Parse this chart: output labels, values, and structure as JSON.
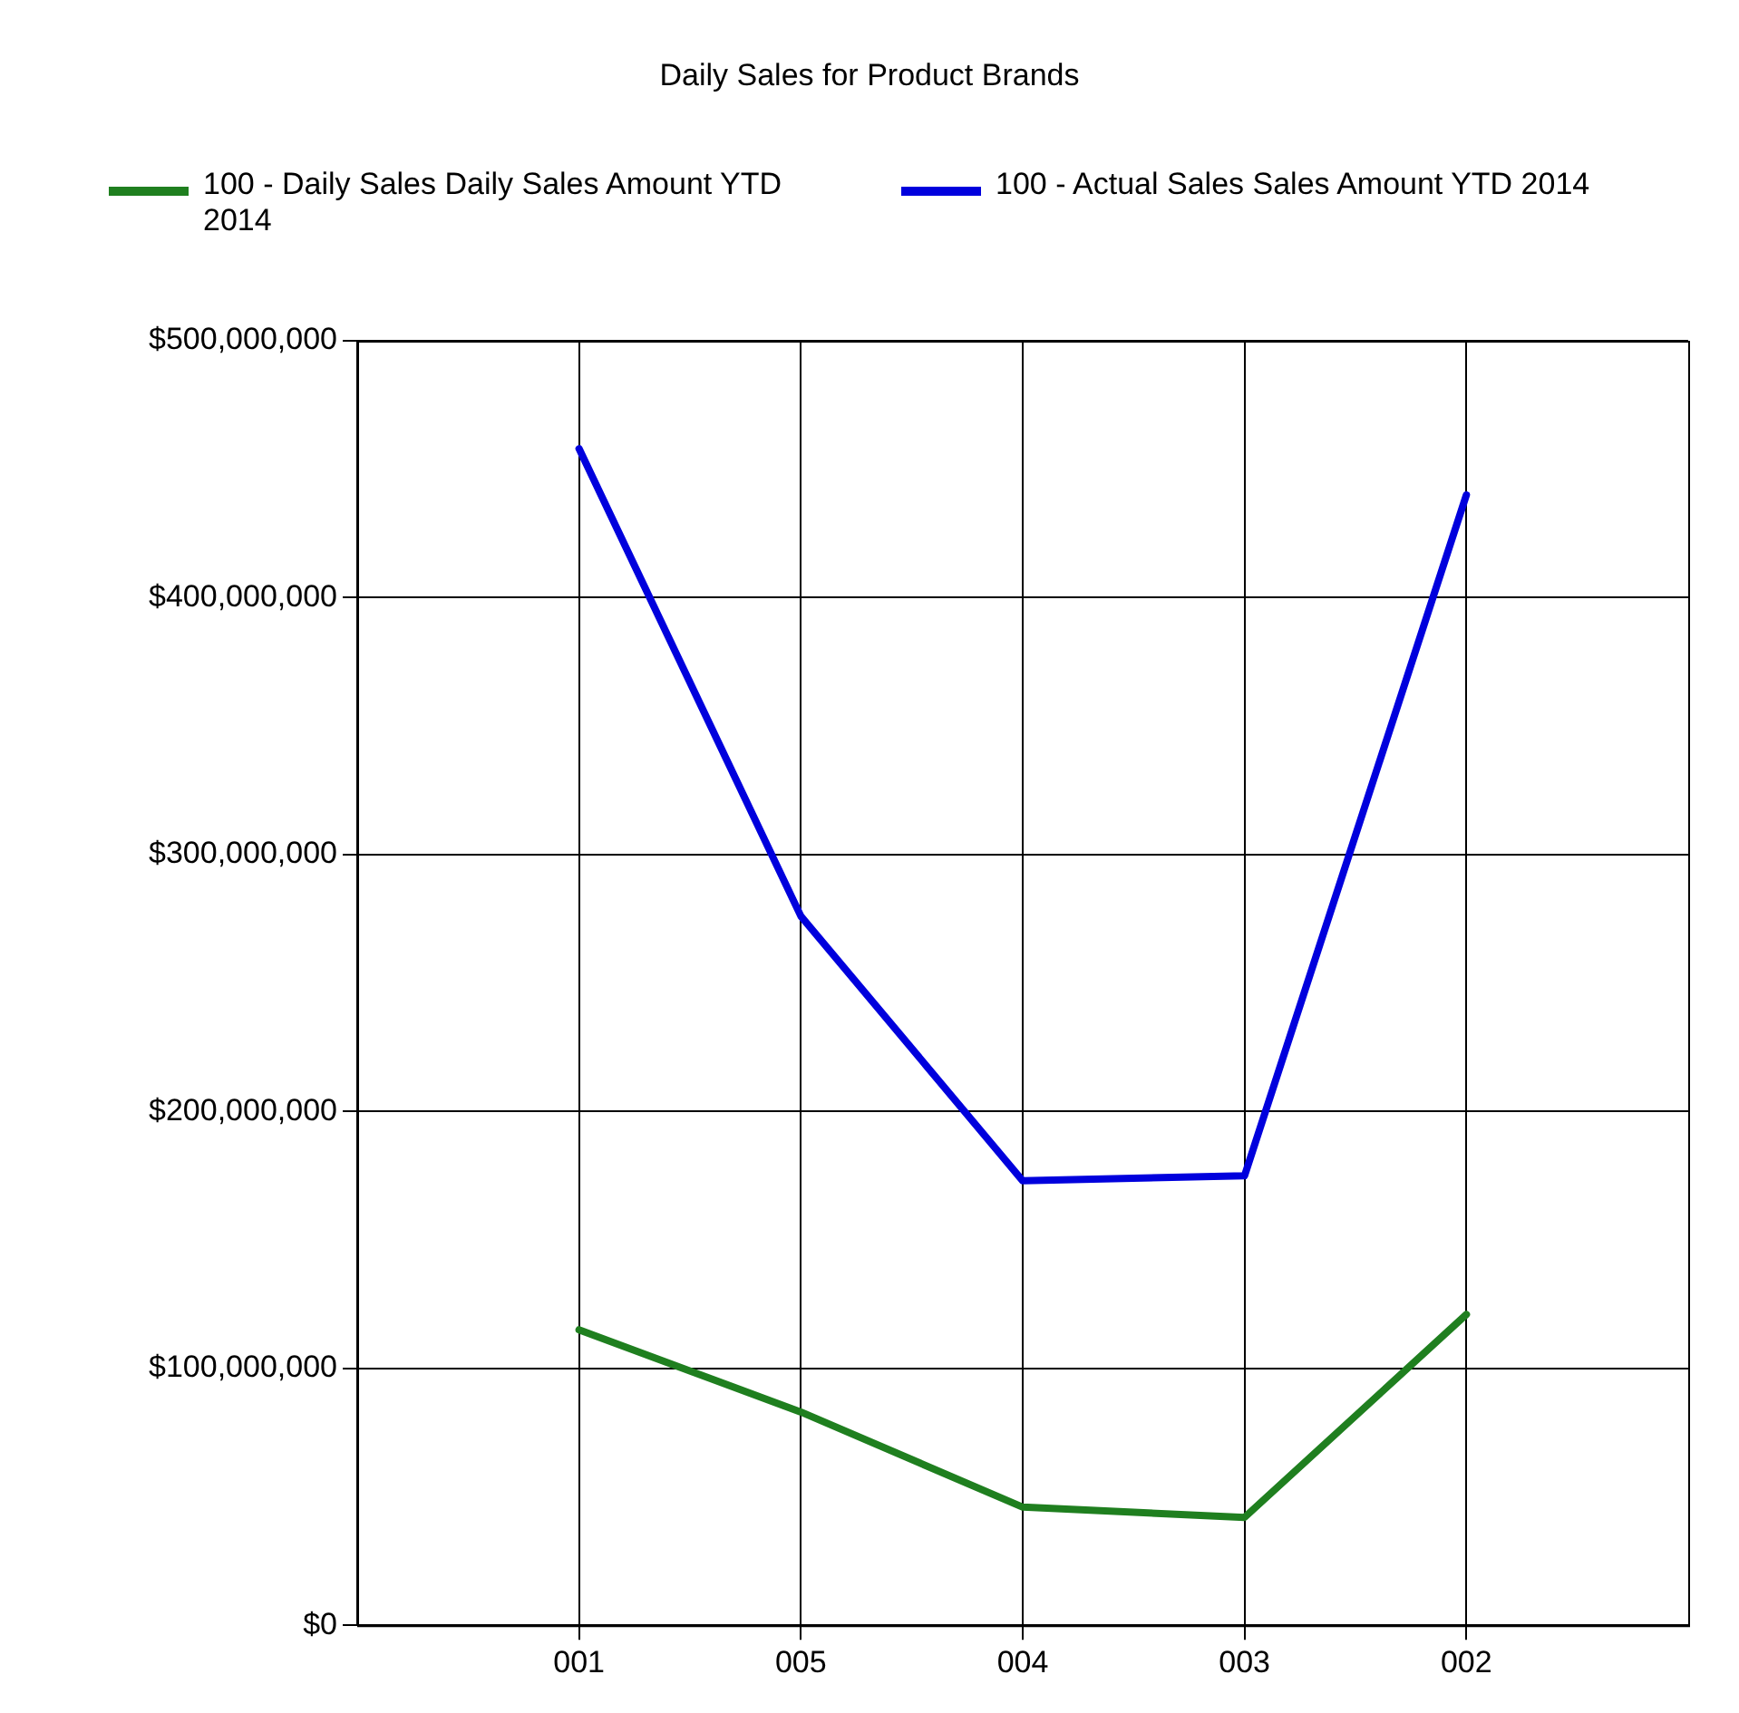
{
  "chart_data": {
    "type": "line",
    "title": "Daily Sales for Product Brands",
    "categories": [
      "001",
      "005",
      "004",
      "003",
      "002"
    ],
    "series": [
      {
        "name": "100 - Daily Sales Daily Sales Amount YTD 2014",
        "color": "#1f7f1f",
        "values": [
          115000000,
          83000000,
          46000000,
          42000000,
          121000000
        ]
      },
      {
        "name": "100 - Actual Sales Sales Amount YTD 2014",
        "color": "#0000dd",
        "values": [
          458000000,
          276000000,
          173000000,
          175000000,
          440000000
        ]
      }
    ],
    "ylim": [
      0,
      500000000
    ],
    "yticks": [
      {
        "value": 0,
        "label": "$0"
      },
      {
        "value": 100000000,
        "label": "$100,000,000"
      },
      {
        "value": 200000000,
        "label": "$200,000,000"
      },
      {
        "value": 300000000,
        "label": "$300,000,000"
      },
      {
        "value": 400000000,
        "label": "$400,000,000"
      },
      {
        "value": 500000000,
        "label": "$500,000,000"
      }
    ],
    "grid": true,
    "legend": "top left",
    "marker": "none",
    "line_style": "solid"
  }
}
